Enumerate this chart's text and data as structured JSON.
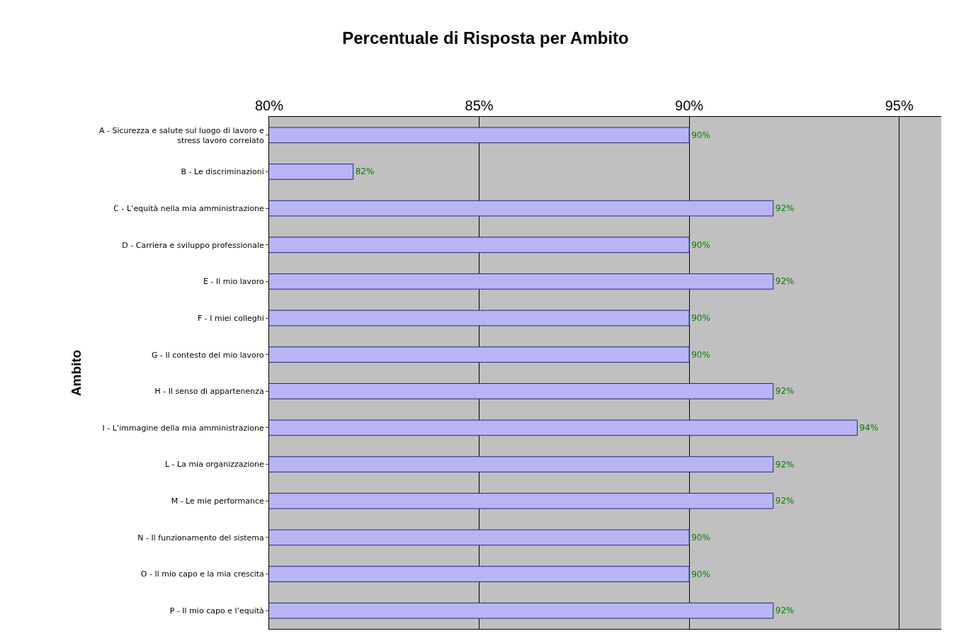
{
  "chart_data": {
    "type": "bar",
    "orientation": "horizontal",
    "title": "Percentuale di Risposta per Ambito",
    "ylabel": "Ambito",
    "categories": [
      "A - Sicurezza e salute sul luogo di lavoro e stress lavoro correlato",
      "B - Le discriminazioni",
      "C - L’equità nella mia amministrazione",
      "D - Carriera e sviluppo professionale",
      "E - Il mio lavoro",
      "F - I miei colleghi",
      "G - Il contesto del mio lavoro",
      "H - Il senso di appartenenza",
      "I - L’immagine della mia amministrazione",
      "L - La mia organizzazione",
      "M - Le mie performance",
      "N - Il funzionamento del sistema",
      "O - Il mio capo e la mia crescita",
      "P - Il mio capo e l’equità"
    ],
    "values": [
      90,
      82,
      92,
      90,
      92,
      90,
      90,
      92,
      94,
      92,
      92,
      90,
      90,
      92
    ],
    "value_labels": [
      "90%",
      "82%",
      "92%",
      "90%",
      "92%",
      "90%",
      "90%",
      "92%",
      "94%",
      "92%",
      "92%",
      "90%",
      "90%",
      "92%"
    ],
    "color": "#b9b4f4",
    "xlim": [
      80,
      96
    ],
    "xticks": [
      {
        "value": 80,
        "label": "80%"
      },
      {
        "value": 85,
        "label": "85%"
      },
      {
        "value": 90,
        "label": "90%"
      },
      {
        "value": 95,
        "label": "95%"
      }
    ],
    "grid": "x"
  }
}
